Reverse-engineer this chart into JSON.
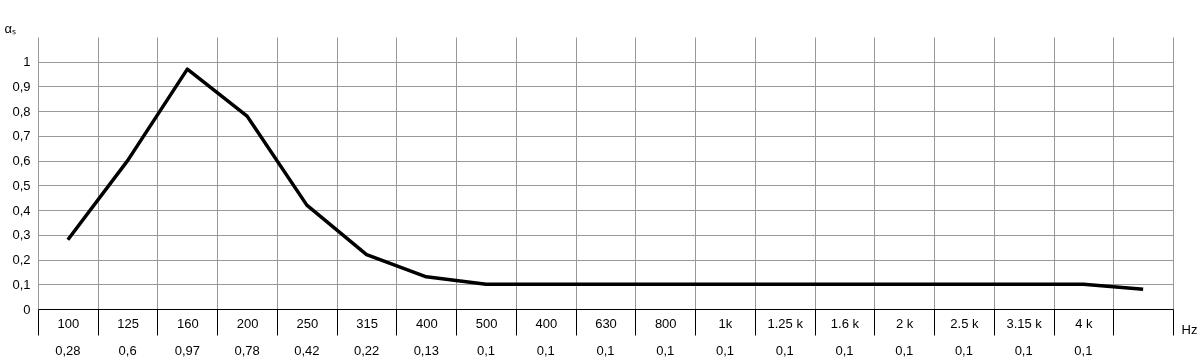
{
  "chart_data": {
    "type": "line",
    "ylabel": "αₛ",
    "xlabel": "Hz",
    "categories": [
      "100",
      "125",
      "160",
      "200",
      "250",
      "315",
      "400",
      "500",
      "400",
      "630",
      "800",
      "1k",
      "1.25 k",
      "1.6 k",
      "2 k",
      "2.5 k",
      "3.15 k",
      "4 k",
      null
    ],
    "series": [
      {
        "color": "#000000",
        "values": [
          0.28,
          0.6,
          0.97,
          0.78,
          0.42,
          0.22,
          0.13,
          0.1,
          0.1,
          0.1,
          0.1,
          0.1,
          0.1,
          0.1,
          0.1,
          0.1,
          0.1,
          0.1,
          0.08
        ],
        "value_labels": [
          "0,28",
          "0,6",
          "0,97",
          "0,78",
          "0,42",
          "0,22",
          "0,13",
          "0,1",
          "0,1",
          "0,1",
          "0,1",
          "0,1",
          "0,1",
          "0,1",
          "0,1",
          "0,1",
          "0,1",
          "0,1",
          null
        ]
      }
    ],
    "ylim": [
      0,
      1.1
    ],
    "yticks": [
      0,
      {
        "value": 0.1,
        "label": "0,1"
      },
      {
        "value": 0.2,
        "label": "0,2"
      },
      {
        "value": 0.3,
        "label": "0,3"
      },
      {
        "value": 0.4,
        "label": "0,4"
      },
      {
        "value": 0.5,
        "label": "0,5"
      },
      {
        "value": 0.6,
        "label": "0,6"
      },
      {
        "value": 0.7,
        "label": "0,7"
      },
      {
        "value": 0.8,
        "label": "0,8"
      },
      {
        "value": 0.9,
        "label": "0,9"
      },
      1
    ],
    "grid": true,
    "marker": "none",
    "line_style": "solid"
  }
}
